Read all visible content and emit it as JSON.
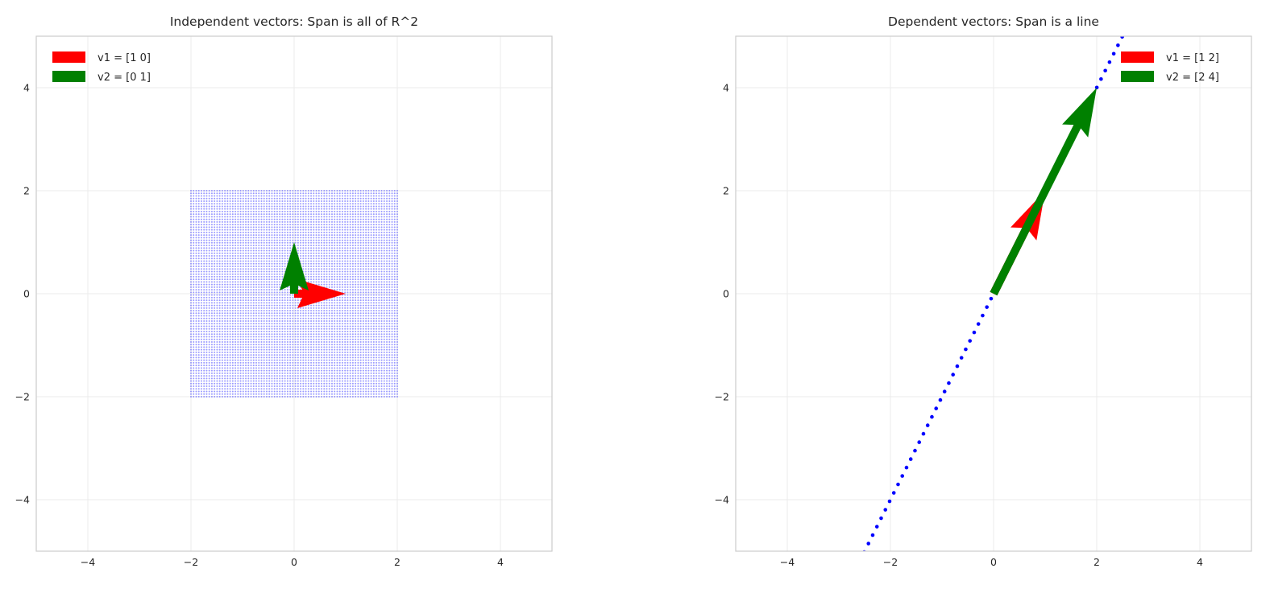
{
  "chart_data": [
    {
      "type": "scatter",
      "title": "Independent vectors: Span is all of R^2",
      "xlim": [
        -5,
        5
      ],
      "ylim": [
        -5,
        5
      ],
      "xticks": [
        "−4",
        "−2",
        "0",
        "2",
        "4"
      ],
      "yticks": [
        "−4",
        "−2",
        "0",
        "2",
        "4"
      ],
      "grid": true,
      "legend_position": "top-right",
      "span_points": {
        "kind": "grid",
        "x_range": [
          -2,
          2
        ],
        "y_range": [
          -2,
          2
        ],
        "count_per_axis": 80,
        "color": "#0000ff"
      },
      "vectors": [
        {
          "name": "v1 = [1 0]",
          "x": 1,
          "y": 0,
          "color": "#ff0000"
        },
        {
          "name": "v2 = [0 1]",
          "x": 0,
          "y": 1,
          "color": "#008000"
        }
      ]
    },
    {
      "type": "scatter",
      "title": "Dependent vectors: Span is a line",
      "xlim": [
        -5,
        5
      ],
      "ylim": [
        -5,
        5
      ],
      "xticks": [
        "−4",
        "−2",
        "0",
        "2",
        "4"
      ],
      "yticks": [
        "−4",
        "−2",
        "0",
        "2",
        "4"
      ],
      "grid": true,
      "legend_position": "top-left",
      "span_points": {
        "kind": "line",
        "direction": [
          1,
          2
        ],
        "color": "#0000ff"
      },
      "vectors": [
        {
          "name": "v1 = [1 2]",
          "x": 1,
          "y": 2,
          "color": "#ff0000"
        },
        {
          "name": "v2 = [2 4]",
          "x": 2,
          "y": 4,
          "color": "#008000"
        }
      ]
    }
  ]
}
